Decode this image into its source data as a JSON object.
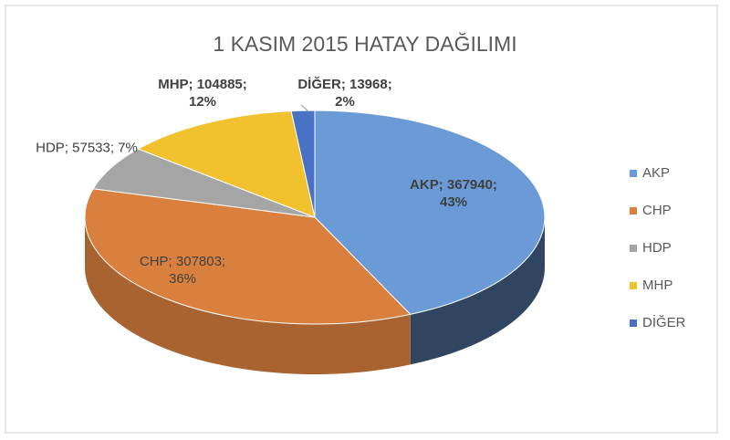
{
  "chart_data": {
    "type": "pie3d",
    "title": "1 KASIM 2015 HATAY DAĞILIMI",
    "categories": [
      "AKP",
      "CHP",
      "HDP",
      "MHP",
      "DİĞER"
    ],
    "values": [
      367940,
      307803,
      57533,
      104885,
      13968
    ],
    "value_labels": [
      "AKP; 367940; 43%",
      "CHP; 307803; 36%",
      "HDP; 57533; 7%",
      "MHP; 104885; 12%",
      "DİĞER; 13968; 2%"
    ],
    "colors": [
      "#6b9bd6",
      "#d9803e",
      "#a5a5a5",
      "#f2c12e",
      "#4a72c4"
    ],
    "legend": "right"
  }
}
